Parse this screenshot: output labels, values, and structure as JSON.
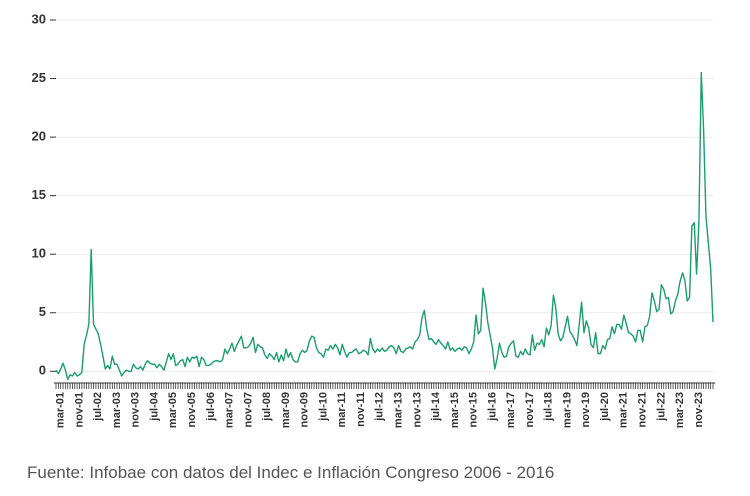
{
  "chart_data": {
    "type": "line",
    "source": "Fuente: Infobae con datos del Indec e Inflación Congreso 2006 - 2016",
    "categories": [
      null,
      null,
      "mar-01",
      null,
      null,
      null,
      null,
      null,
      null,
      null,
      "nov-01",
      null,
      null,
      null,
      null,
      null,
      null,
      null,
      "jul-02",
      null,
      null,
      null,
      null,
      null,
      null,
      null,
      "mar-03",
      null,
      null,
      null,
      null,
      null,
      null,
      null,
      "nov-03",
      null,
      null,
      null,
      null,
      null,
      null,
      null,
      "jul-04",
      null,
      null,
      null,
      null,
      null,
      null,
      null,
      "mar-05",
      null,
      null,
      null,
      null,
      null,
      null,
      null,
      "nov-05",
      null,
      null,
      null,
      null,
      null,
      null,
      null,
      "jul-06",
      null,
      null,
      null,
      null,
      null,
      null,
      null,
      "mar-07",
      null,
      null,
      null,
      null,
      null,
      null,
      null,
      "nov-07",
      null,
      null,
      null,
      null,
      null,
      null,
      null,
      "jul-08",
      null,
      null,
      null,
      null,
      null,
      null,
      null,
      "mar-09",
      null,
      null,
      null,
      null,
      null,
      null,
      null,
      "nov-09",
      null,
      null,
      null,
      null,
      null,
      null,
      null,
      "jul-10",
      null,
      null,
      null,
      null,
      null,
      null,
      null,
      "mar-11",
      null,
      null,
      null,
      null,
      null,
      null,
      null,
      "nov-11",
      null,
      null,
      null,
      null,
      null,
      null,
      null,
      "jul-12",
      null,
      null,
      null,
      null,
      null,
      null,
      null,
      "mar-13",
      null,
      null,
      null,
      null,
      null,
      null,
      null,
      "nov-13",
      null,
      null,
      null,
      null,
      null,
      null,
      null,
      "jul-14",
      null,
      null,
      null,
      null,
      null,
      null,
      null,
      "mar-15",
      null,
      null,
      null,
      null,
      null,
      null,
      null,
      "nov-15",
      null,
      null,
      null,
      null,
      null,
      null,
      null,
      "jul-16",
      null,
      null,
      null,
      null,
      null,
      null,
      null,
      "mar-17",
      null,
      null,
      null,
      null,
      null,
      null,
      null,
      "nov-17",
      null,
      null,
      null,
      null,
      null,
      null,
      null,
      "jul-18",
      null,
      null,
      null,
      null,
      null,
      null,
      null,
      "mar-19",
      null,
      null,
      null,
      null,
      null,
      null,
      null,
      "nov-19",
      null,
      null,
      null,
      null,
      null,
      null,
      null,
      "jul-20",
      null,
      null,
      null,
      null,
      null,
      null,
      null,
      "mar-21",
      null,
      null,
      null,
      null,
      null,
      null,
      null,
      "nov-21",
      null,
      null,
      null,
      null,
      null,
      null,
      null,
      "jul-22",
      null,
      null,
      null,
      null,
      null,
      null,
      null,
      "mar-23",
      null,
      null,
      null,
      null,
      null,
      null,
      null,
      "nov-23",
      null,
      null,
      null,
      null,
      null,
      null
    ],
    "values": [
      0.1,
      -0.2,
      0.2,
      0.7,
      0.1,
      -0.7,
      -0.3,
      -0.4,
      -0.1,
      -0.4,
      -0.3,
      -0.1,
      2.3,
      3.1,
      4.0,
      10.4,
      4.0,
      3.6,
      3.2,
      2.3,
      1.3,
      0.2,
      0.5,
      0.2,
      1.3,
      0.6,
      0.6,
      0.1,
      -0.4,
      -0.1,
      0.1,
      0.0,
      0.0,
      0.6,
      0.3,
      0.2,
      0.4,
      0.1,
      0.6,
      0.9,
      0.7,
      0.6,
      0.6,
      0.3,
      0.6,
      0.4,
      0.1,
      0.8,
      1.5,
      1.0,
      1.5,
      0.5,
      0.6,
      0.9,
      1.0,
      0.4,
      1.2,
      0.8,
      1.2,
      1.1,
      1.3,
      0.4,
      1.2,
      1.0,
      0.5,
      0.5,
      0.6,
      0.8,
      0.9,
      0.9,
      0.8,
      1.0,
      1.9,
      1.5,
      1.9,
      2.4,
      1.7,
      2.2,
      2.6,
      3.0,
      2.0,
      2.0,
      2.1,
      2.4,
      2.9,
      1.6,
      2.3,
      2.1,
      2.0,
      1.4,
      1.1,
      1.5,
      1.3,
      1.0,
      1.6,
      0.8,
      1.4,
      0.9,
      1.9,
      1.2,
      1.6,
      1.0,
      0.8,
      0.8,
      1.5,
      1.8,
      1.6,
      1.8,
      2.6,
      3.0,
      2.9,
      2.0,
      1.6,
      1.5,
      1.2,
      1.9,
      1.8,
      2.2,
      1.9,
      2.3,
      2.0,
      1.4,
      2.3,
      1.7,
      1.2,
      1.6,
      1.6,
      1.8,
      1.9,
      1.5,
      1.6,
      1.8,
      1.7,
      1.4,
      2.8,
      1.9,
      1.6,
      1.9,
      1.7,
      2.0,
      1.7,
      1.8,
      2.1,
      2.2,
      2.0,
      1.5,
      2.2,
      1.7,
      1.6,
      1.9,
      2.0,
      2.1,
      1.9,
      2.5,
      2.7,
      3.1,
      4.6,
      5.2,
      3.6,
      2.7,
      2.8,
      2.5,
      2.3,
      2.7,
      2.4,
      2.2,
      1.9,
      2.5,
      1.8,
      2.0,
      1.7,
      1.9,
      2.0,
      1.8,
      2.1,
      2.0,
      1.5,
      1.9,
      2.5,
      4.8,
      3.2,
      3.5,
      7.1,
      5.9,
      4.2,
      3.1,
      2.0,
      0.2,
      1.1,
      2.4,
      1.6,
      1.2,
      1.3,
      2.1,
      2.4,
      2.6,
      1.3,
      1.2,
      1.7,
      1.4,
      1.9,
      1.5,
      1.4,
      3.1,
      1.8,
      2.4,
      2.3,
      2.7,
      2.1,
      3.7,
      3.1,
      3.9,
      6.5,
      5.4,
      3.2,
      2.6,
      2.9,
      3.8,
      4.7,
      3.4,
      3.1,
      2.7,
      2.2,
      4.0,
      5.9,
      3.3,
      4.3,
      3.7,
      2.3,
      2.0,
      3.3,
      1.5,
      1.5,
      2.2,
      1.9,
      2.7,
      2.8,
      3.8,
      3.2,
      4.0,
      4.0,
      3.6,
      4.8,
      4.1,
      3.3,
      3.2,
      3.0,
      2.5,
      3.5,
      3.5,
      2.5,
      3.8,
      3.9,
      4.7,
      6.7,
      6.0,
      5.1,
      5.3,
      7.4,
      7.0,
      6.2,
      6.3,
      4.9,
      5.1,
      6.0,
      6.6,
      7.7,
      8.4,
      7.8,
      6.0,
      6.3,
      12.4,
      12.7,
      8.3,
      12.8,
      25.5,
      20.6,
      13.2,
      11.0,
      8.8,
      4.2
    ],
    "color": "#1a9e6e",
    "ylim": [
      -1,
      30
    ],
    "yticks": [
      0,
      5,
      10,
      15,
      20,
      25,
      30
    ],
    "grid": true
  }
}
